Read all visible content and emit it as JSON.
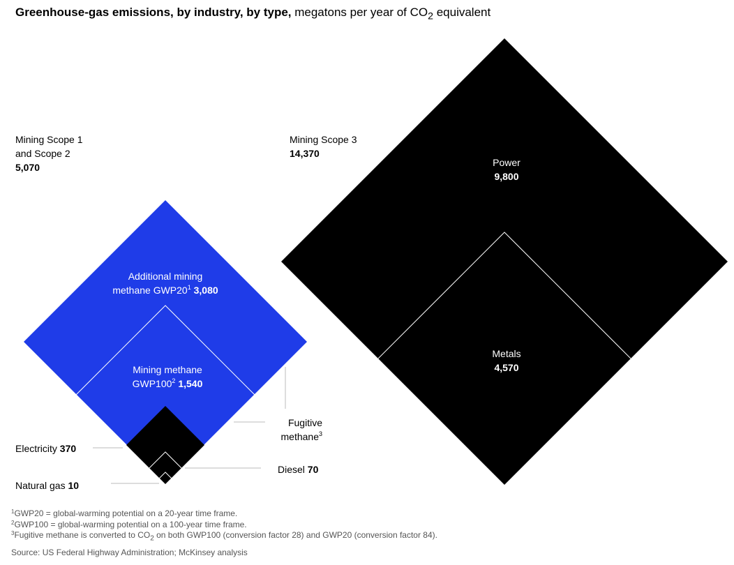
{
  "header": {
    "title_bold": "Greenhouse-gas emissions, by industry, by type,",
    "title_unit_pre": " megatons per year of CO",
    "title_unit_sub": "2",
    "title_unit_post": " equivalent"
  },
  "chart_data": {
    "type": "nested-diamond",
    "title": "Greenhouse-gas emissions, by industry, by type, megatons per year of CO2 equivalent",
    "unit": "megatons per year of CO2 equivalent",
    "groups": [
      {
        "name_line1": "Mining Scope 1",
        "name_line2": "and Scope 2",
        "value_label": "5,070",
        "value": 5070,
        "color": "#1f3ce8",
        "items": [
          {
            "name_line1": "Additional mining",
            "name_line2": "methane GWP20",
            "sup": "1",
            "value_label": "3,080",
            "value": 3080
          },
          {
            "name_line1": "Mining methane",
            "name_line2": "GWP100",
            "sup": "2",
            "value_label": "1,540",
            "value": 1540
          },
          {
            "name": "Electricity",
            "value_label": "370",
            "value": 370
          },
          {
            "name": "Diesel",
            "value_label": "70",
            "value": 70
          },
          {
            "name": "Natural gas",
            "value_label": "10",
            "value": 10
          }
        ],
        "bracket_label_line1": "Fugitive",
        "bracket_label_line2": "methane",
        "bracket_sup": "3"
      },
      {
        "name": "Mining Scope 3",
        "value_label": "14,370",
        "value": 14370,
        "color": "#000000",
        "items": [
          {
            "name": "Power",
            "value_label": "9,800",
            "value": 9800
          },
          {
            "name": "Metals",
            "value_label": "4,570",
            "value": 4570
          }
        ]
      }
    ]
  },
  "footnotes": [
    {
      "sup": "1",
      "text": "GWP20 = global-warming potential on a 20-year time frame."
    },
    {
      "sup": "2",
      "text": "GWP100 = global-warming potential on a 100-year time frame."
    },
    {
      "sup": "3",
      "text_pre": "Fugitive methane is converted to CO",
      "sub": "2",
      "text_post": " on both GWP100 (conversion factor 28) and GWP20 (conversion factor 84)."
    }
  ],
  "source": "Source: US Federal Highway Administration; McKinsey analysis",
  "colors": {
    "blue": "#1f3ce8",
    "black": "#000000",
    "leader": "#bbbbbb"
  }
}
